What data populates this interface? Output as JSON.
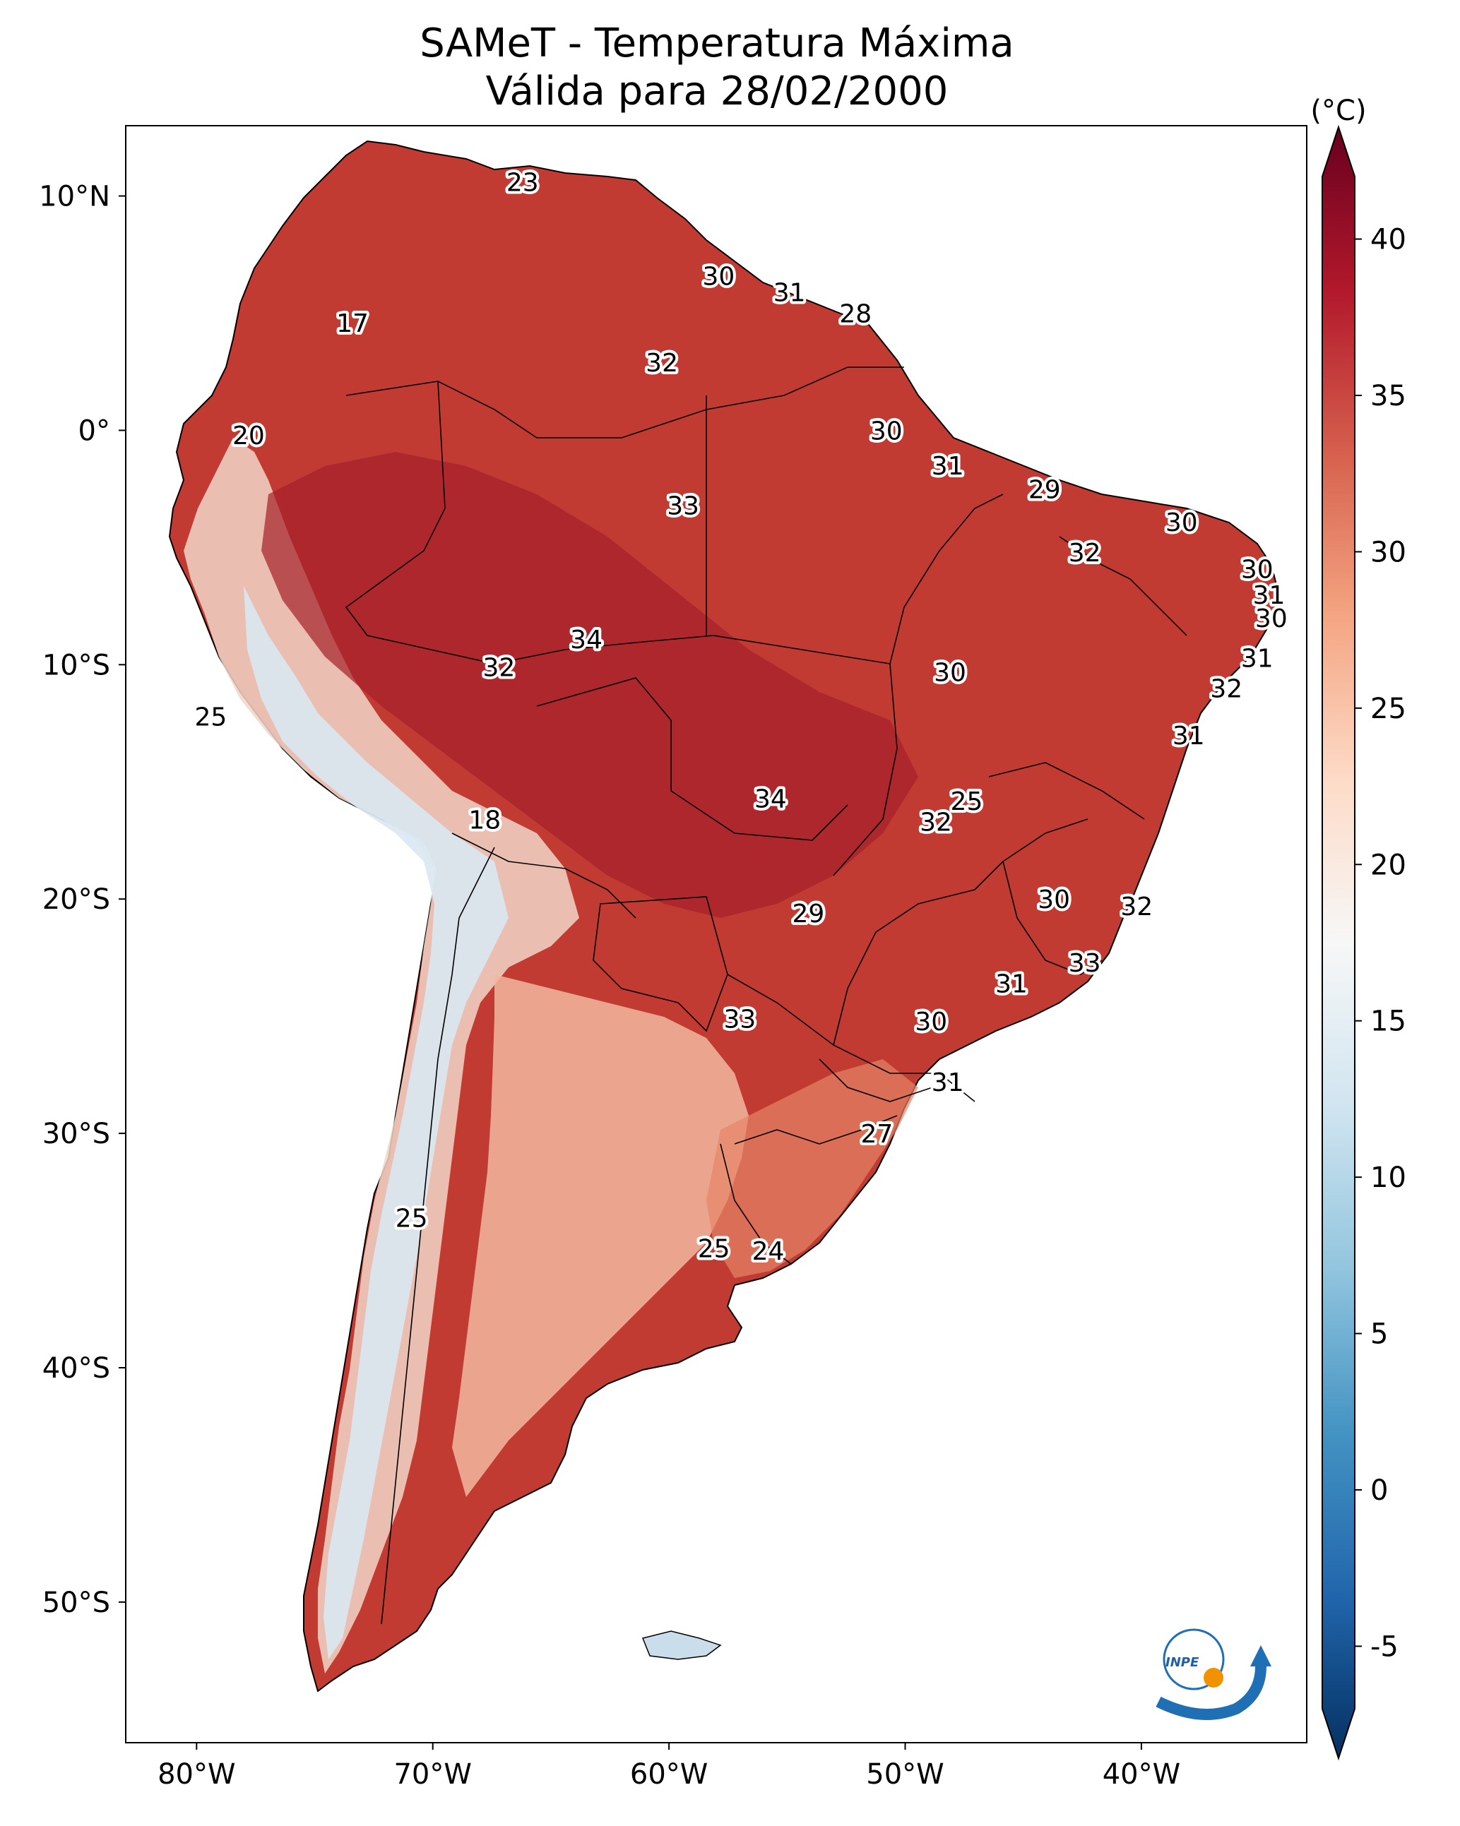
{
  "title": {
    "line1": "SAMeT - Temperatura Máxima",
    "line2": "Válida para 28/02/2000"
  },
  "map": {
    "lon_range": [
      -83,
      -33
    ],
    "lat_range": [
      -56,
      13
    ],
    "lon_ticks": [
      {
        "value": -80,
        "label": "80°W"
      },
      {
        "value": -70,
        "label": "70°W"
      },
      {
        "value": -60,
        "label": "60°W"
      },
      {
        "value": -50,
        "label": "50°W"
      },
      {
        "value": -40,
        "label": "40°W"
      }
    ],
    "lat_ticks": [
      {
        "value": 10,
        "label": "10°N"
      },
      {
        "value": 0,
        "label": "0°"
      },
      {
        "value": -10,
        "label": "10°S"
      },
      {
        "value": -20,
        "label": "20°S"
      },
      {
        "value": -30,
        "label": "30°S"
      },
      {
        "value": -40,
        "label": "40°S"
      },
      {
        "value": -50,
        "label": "50°S"
      }
    ],
    "isotherm_labels": [
      {
        "text": "23",
        "lon": -66.2,
        "lat": 10.6
      },
      {
        "text": "30",
        "lon": -57.9,
        "lat": 6.6
      },
      {
        "text": "31",
        "lon": -54.9,
        "lat": 5.9
      },
      {
        "text": "28",
        "lon": -52.1,
        "lat": 5.0
      },
      {
        "text": "17",
        "lon": -73.4,
        "lat": 4.6
      },
      {
        "text": "32",
        "lon": -60.3,
        "lat": 2.9
      },
      {
        "text": "20",
        "lon": -77.8,
        "lat": -0.2
      },
      {
        "text": "30",
        "lon": -50.8,
        "lat": 0.0
      },
      {
        "text": "31",
        "lon": -48.2,
        "lat": -1.5
      },
      {
        "text": "29",
        "lon": -44.1,
        "lat": -2.5
      },
      {
        "text": "33",
        "lon": -59.4,
        "lat": -3.2
      },
      {
        "text": "30",
        "lon": -38.3,
        "lat": -3.9
      },
      {
        "text": "32",
        "lon": -42.4,
        "lat": -5.2
      },
      {
        "text": "30",
        "lon": -35.1,
        "lat": -5.9
      },
      {
        "text": "31",
        "lon": -34.6,
        "lat": -7.0
      },
      {
        "text": "30",
        "lon": -34.5,
        "lat": -8.0
      },
      {
        "text": "34",
        "lon": -63.5,
        "lat": -8.9
      },
      {
        "text": "32",
        "lon": -67.2,
        "lat": -10.1
      },
      {
        "text": "30",
        "lon": -48.1,
        "lat": -10.3
      },
      {
        "text": "31",
        "lon": -35.1,
        "lat": -9.7
      },
      {
        "text": "32",
        "lon": -36.4,
        "lat": -11.0
      },
      {
        "text": "25",
        "lon": -79.4,
        "lat": -12.2
      },
      {
        "text": "31",
        "lon": -38.0,
        "lat": -13.0
      },
      {
        "text": "34",
        "lon": -55.7,
        "lat": -15.7
      },
      {
        "text": "25",
        "lon": -47.4,
        "lat": -15.8
      },
      {
        "text": "32",
        "lon": -48.7,
        "lat": -16.7
      },
      {
        "text": "18",
        "lon": -67.8,
        "lat": -16.6
      },
      {
        "text": "30",
        "lon": -43.7,
        "lat": -20.0
      },
      {
        "text": "32",
        "lon": -40.2,
        "lat": -20.3
      },
      {
        "text": "29",
        "lon": -54.1,
        "lat": -20.6
      },
      {
        "text": "33",
        "lon": -42.4,
        "lat": -22.7
      },
      {
        "text": "31",
        "lon": -45.5,
        "lat": -23.6
      },
      {
        "text": "33",
        "lon": -57.0,
        "lat": -25.1
      },
      {
        "text": "30",
        "lon": -48.9,
        "lat": -25.2
      },
      {
        "text": "31",
        "lon": -48.2,
        "lat": -27.8
      },
      {
        "text": "27",
        "lon": -51.2,
        "lat": -30.0
      },
      {
        "text": "25",
        "lon": -70.9,
        "lat": -33.6
      },
      {
        "text": "25",
        "lon": -58.1,
        "lat": -34.9
      },
      {
        "text": "24",
        "lon": -55.8,
        "lat": -35.0
      }
    ]
  },
  "colorbar": {
    "unit": "(°C)",
    "min": -7,
    "max": 42,
    "ticks": [
      {
        "value": -5,
        "label": "-5"
      },
      {
        "value": 0,
        "label": "0"
      },
      {
        "value": 5,
        "label": "5"
      },
      {
        "value": 10,
        "label": "10"
      },
      {
        "value": 15,
        "label": "15"
      },
      {
        "value": 20,
        "label": "20"
      },
      {
        "value": 25,
        "label": "25"
      },
      {
        "value": 30,
        "label": "30"
      },
      {
        "value": 35,
        "label": "35"
      },
      {
        "value": 40,
        "label": "40"
      }
    ],
    "colors": [
      "#053061",
      "#2166ac",
      "#4393c3",
      "#92c5de",
      "#d1e5f0",
      "#f7f7f7",
      "#fddbc7",
      "#f4a582",
      "#d6604d",
      "#b2182b",
      "#67001f"
    ]
  },
  "logo": {
    "text": "INPE",
    "blue": "#1f6fb4",
    "orange": "#f39200"
  }
}
